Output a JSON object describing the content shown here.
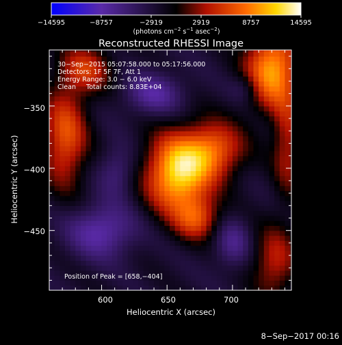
{
  "colorbar": {
    "min": -14595,
    "max": 14595,
    "tick_labels": [
      "−14595",
      "−8757",
      "−2919",
      "2919",
      "8757",
      "14595"
    ],
    "colors": [
      "#0000ff",
      "#5a2aa8",
      "#000000",
      "#b01000",
      "#ff6a00",
      "#ffd700",
      "#ffffff"
    ]
  },
  "chart_data": {
    "type": "heatmap",
    "title": "Reconstructed RHESSI Image",
    "xlabel": "Heliocentric X (arcsec)",
    "ylabel": "Heliocentric Y (arcsec)",
    "xlim": [
      560,
      745
    ],
    "ylim": [
      -498,
      -305
    ],
    "x_ticks": [
      600,
      650,
      700
    ],
    "y_ticks": [
      -350,
      -400,
      -450
    ],
    "x_tick_labels": [
      "600",
      "650",
      "700"
    ],
    "y_tick_labels": [
      "−350",
      "−400",
      "−450"
    ],
    "colorbar_label_parts": {
      "open": "(photons cm",
      "sup1": "−2",
      "mid1": " s",
      "sup2": "−1",
      "mid2": " asec",
      "sup3": "−2",
      "close": ")"
    },
    "annotations": [
      "30−Sep−2015 05:07:58.000 to 05:17:56.000",
      "Detectors: 1F 5F 7F, Att 1",
      "Energy Range: 3.0 − 6.0 keV",
      "Clean     Total counts: 8.83E+04"
    ],
    "peak_label": "Position of Peak = [658,−404]",
    "peak": {
      "x": 658,
      "y": -404,
      "value": 14595
    },
    "components": [
      {
        "x": 658,
        "y": -404,
        "amp": 14595,
        "sx": 17,
        "sy": 22
      },
      {
        "x": 686,
        "y": -385,
        "amp": 9000,
        "sx": 16,
        "sy": 16
      },
      {
        "x": 673,
        "y": -440,
        "amp": 7500,
        "sx": 12,
        "sy": 12
      },
      {
        "x": 730,
        "y": -320,
        "amp": 12500,
        "sx": 14,
        "sy": 22
      },
      {
        "x": 742,
        "y": -380,
        "amp": 6000,
        "sx": 8,
        "sy": 30
      },
      {
        "x": 572,
        "y": -375,
        "amp": 9000,
        "sx": 12,
        "sy": 28
      },
      {
        "x": 588,
        "y": -320,
        "amp": 7000,
        "sx": 14,
        "sy": 14
      },
      {
        "x": 732,
        "y": -475,
        "amp": 6500,
        "sx": 12,
        "sy": 20
      },
      {
        "x": 640,
        "y": -340,
        "amp": -5500,
        "sx": 16,
        "sy": 12
      },
      {
        "x": 600,
        "y": -450,
        "amp": -6500,
        "sx": 18,
        "sy": 15
      },
      {
        "x": 612,
        "y": -402,
        "amp": -4000,
        "sx": 10,
        "sy": 14
      },
      {
        "x": 700,
        "y": -460,
        "amp": -4500,
        "sx": 10,
        "sy": 14
      },
      {
        "x": 710,
        "y": -335,
        "amp": -3000,
        "sx": 8,
        "sy": 8
      }
    ]
  },
  "footer": {
    "timestamp": "8−Sep−2017 00:16"
  }
}
